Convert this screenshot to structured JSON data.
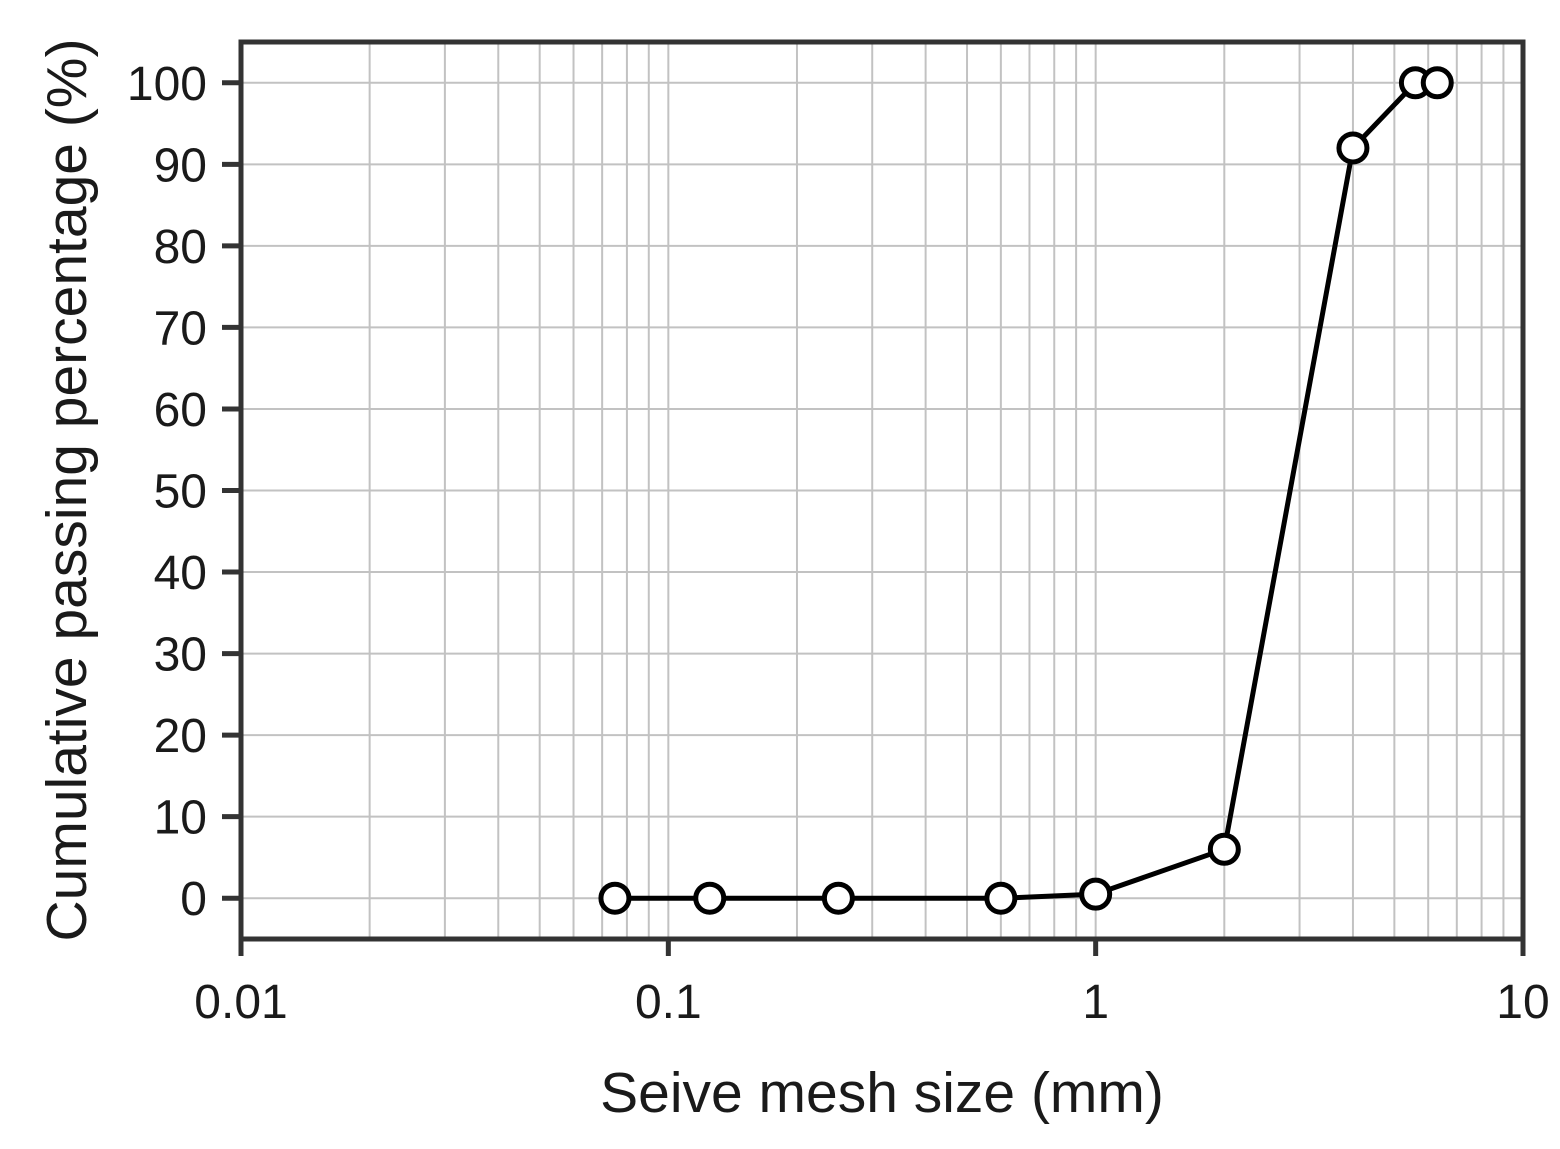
{
  "figure": {
    "background": "#ffffff",
    "description": "Particle size distribution curve (sieve analysis)"
  },
  "chart_data": {
    "type": "line",
    "title": "",
    "xlabel": "Seive mesh size (mm)",
    "ylabel": "Cumulative passing percentage (%)",
    "x_scale": "log",
    "xlim": [
      0.01,
      10
    ],
    "ylim": [
      -5,
      105
    ],
    "x_major_ticks": [
      0.01,
      0.1,
      1,
      10
    ],
    "x_tick_labels": [
      "0.01",
      "0.1",
      "1",
      "10"
    ],
    "y_ticks": [
      0,
      10,
      20,
      30,
      40,
      50,
      60,
      70,
      80,
      90,
      100
    ],
    "grid": {
      "x_minor_log": true,
      "y_major": true,
      "on": true
    },
    "legend": "none",
    "series": [
      {
        "name": "Cumulative passing percentage",
        "marker": "open-circle",
        "line_color": "#000000",
        "marker_fill": "#ffffff",
        "x": [
          0.075,
          0.125,
          0.25,
          0.6,
          1,
          2,
          4,
          5.6,
          6.3
        ],
        "y": [
          0,
          0,
          0,
          0,
          0.5,
          6,
          92,
          100,
          100
        ]
      }
    ],
    "colors": {
      "axis": "#333333",
      "text": "#1a1a1a",
      "grid": "#c2c2c2",
      "line": "#000000",
      "marker_fill": "#ffffff"
    }
  }
}
